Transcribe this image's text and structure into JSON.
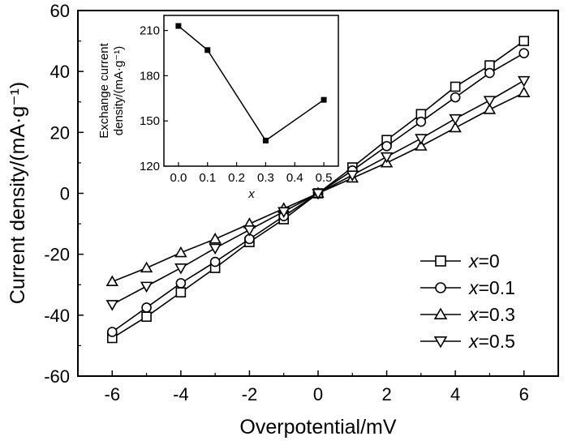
{
  "chart_data": [
    {
      "type": "line",
      "xlabel": "Overpotential/mV",
      "ylabel": "Current density/(mA·g⁻¹)",
      "xlim": [
        -7,
        7
      ],
      "ylim": [
        -60,
        60
      ],
      "xticks": [
        -6,
        -4,
        -2,
        0,
        2,
        4,
        6
      ],
      "yticks": [
        -60,
        -40,
        -20,
        0,
        20,
        40,
        60
      ],
      "x": [
        -6,
        -5,
        -4,
        -3,
        -2,
        -1,
        0,
        1,
        2,
        3,
        4,
        5,
        6
      ],
      "legend_position": "bottom-right",
      "series": [
        {
          "name": "x=0",
          "var": "x",
          "eq": "=0",
          "marker": "square",
          "values": [
            -47.5,
            -40.5,
            -32.5,
            -24.5,
            -16,
            -8.5,
            0,
            8.5,
            17.5,
            26,
            35,
            42,
            50
          ]
        },
        {
          "name": "x=0.1",
          "var": "x",
          "eq": "=0.1",
          "marker": "circle",
          "values": [
            -45.5,
            -37.5,
            -29.5,
            -22.5,
            -15,
            -7.5,
            0,
            7.5,
            15.5,
            23.5,
            31.5,
            39.5,
            46
          ]
        },
        {
          "name": "x=0.3",
          "var": "x",
          "eq": "=0.3",
          "marker": "triangle-up",
          "values": [
            -29,
            -24.5,
            -19.5,
            -15,
            -10,
            -5,
            0,
            5,
            10,
            15.5,
            21.5,
            27.5,
            33
          ]
        },
        {
          "name": "x=0.5",
          "var": "x",
          "eq": "=0.5",
          "marker": "triangle-down",
          "values": [
            -36.5,
            -30.5,
            -24.5,
            -18,
            -12,
            -6,
            0,
            6,
            12,
            18,
            24.5,
            30.5,
            37
          ]
        }
      ]
    },
    {
      "type": "line",
      "role": "inset",
      "xlabel": "x",
      "ylabel_lines": [
        "Exchange current",
        "density/(mA·g⁻¹)"
      ],
      "xlim": [
        -0.05,
        0.55
      ],
      "ylim": [
        120,
        220
      ],
      "xticks": [
        0.0,
        0.1,
        0.2,
        0.3,
        0.4,
        0.5
      ],
      "xtick_labels": [
        "0.0",
        "0.1",
        "0.2",
        "0.3",
        "0.4",
        "0.5"
      ],
      "yticks": [
        120,
        150,
        180,
        210
      ],
      "x": [
        0.0,
        0.1,
        0.3,
        0.5
      ],
      "values": [
        213,
        197,
        137,
        164
      ],
      "marker": "filled-square"
    }
  ]
}
